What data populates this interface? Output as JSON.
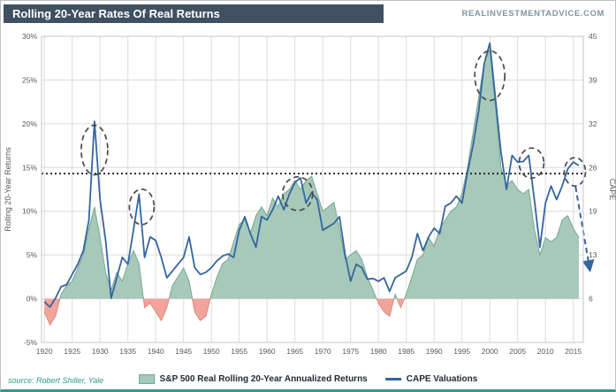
{
  "header": {
    "title": "Rolling 20-Year Rates Of Real Returns",
    "site": "REALINVESTMENTADVICE.COM"
  },
  "legend": {
    "area_label": "S&P 500 Real Rolling 20-Year Annualized Returns",
    "line_label": "CAPE Valuations"
  },
  "footer": {
    "source": "source:  Robert Shiller, Yale"
  },
  "chart_data": {
    "type": "area+line",
    "title": "Rolling 20-Year Rates Of Real Returns",
    "ylabel_left": "Rolling  20-Year Returns",
    "ylabel_right": "CAPE",
    "ylim_left": [
      -5,
      30
    ],
    "ylim_right": [
      0,
      45
    ],
    "x_range": [
      1919.5,
      2016.8
    ],
    "grid": true,
    "left_ticks": [
      "30%",
      "25%",
      "20%",
      "15%",
      "10%",
      "5%",
      "0%",
      "-5%"
    ],
    "right_ticks": [
      "45",
      "39",
      "32",
      "26",
      "19",
      "13",
      "6"
    ],
    "x_ticks": [
      "1920",
      "1925",
      "1930",
      "1935",
      "1940",
      "1945",
      "1950",
      "1955",
      "1960",
      "1965",
      "1970",
      "1975",
      "1980",
      "1985",
      "1990",
      "1995",
      "2000",
      "2005",
      "2010",
      "2015"
    ],
    "dotted_line_pct": 14.3,
    "x": [
      1920,
      1921,
      1922,
      1923,
      1924,
      1925,
      1926,
      1927,
      1928,
      1929,
      1930,
      1931,
      1932,
      1933,
      1934,
      1935,
      1936,
      1937,
      1938,
      1939,
      1940,
      1941,
      1942,
      1943,
      1944,
      1945,
      1946,
      1947,
      1948,
      1949,
      1950,
      1951,
      1952,
      1953,
      1954,
      1955,
      1956,
      1957,
      1958,
      1959,
      1960,
      1961,
      1962,
      1963,
      1964,
      1965,
      1966,
      1967,
      1968,
      1969,
      1970,
      1971,
      1972,
      1973,
      1974,
      1975,
      1976,
      1977,
      1978,
      1979,
      1980,
      1981,
      1982,
      1983,
      1984,
      1985,
      1986,
      1987,
      1988,
      1989,
      1990,
      1991,
      1992,
      1993,
      1994,
      1995,
      1996,
      1997,
      1998,
      1999,
      2000,
      2001,
      2002,
      2003,
      2004,
      2005,
      2006,
      2007,
      2008,
      2009,
      2010,
      2011,
      2012,
      2013,
      2014,
      2015,
      2016
    ],
    "series": [
      {
        "name": "S&P 500 Real Rolling 20-Year Annualized Returns",
        "axis": "left",
        "unit": "%",
        "values": [
          -1.5,
          -3,
          -2,
          0.5,
          1.5,
          2,
          3.5,
          5,
          8,
          10.5,
          7,
          3,
          1,
          3,
          2,
          4,
          5.5,
          4,
          -1,
          -0.5,
          -1.5,
          -2.5,
          -1,
          1.5,
          2.5,
          3.5,
          2,
          -1.5,
          -2.5,
          -2,
          0.5,
          2.5,
          4,
          4.5,
          6.5,
          8.5,
          9,
          7.5,
          9.5,
          10.5,
          9.5,
          11.5,
          10.5,
          12,
          12.5,
          13.5,
          12.5,
          13.5,
          14,
          12,
          10,
          10.5,
          11,
          8,
          4.5,
          5,
          5.5,
          4.5,
          2.5,
          1,
          -0.5,
          -1.5,
          -2,
          0.5,
          -1,
          0.5,
          2.5,
          4.5,
          5,
          7,
          6,
          8,
          9,
          10,
          10.5,
          12,
          15,
          19,
          23,
          27,
          28.5,
          22,
          15,
          13,
          13.5,
          12.5,
          12,
          12.5,
          8,
          5,
          7,
          6.5,
          7,
          9,
          9.5,
          8,
          7
        ]
      },
      {
        "name": "CAPE Valuations",
        "axis": "right",
        "values": [
          6,
          5.2,
          6.5,
          8.2,
          8.5,
          10,
          11.5,
          13.5,
          18,
          32.5,
          21,
          15,
          6.5,
          9.5,
          12.5,
          11.5,
          16.5,
          21.8,
          12.5,
          15.5,
          15,
          12.5,
          9.5,
          10.5,
          11.5,
          12.5,
          15.5,
          11,
          10,
          10.3,
          11,
          12,
          12.7,
          13,
          12.5,
          16.5,
          18.5,
          16,
          14,
          18.5,
          18,
          19.5,
          21.5,
          19.5,
          21.8,
          23.5,
          24.2,
          20.5,
          22,
          21,
          16.5,
          17,
          17.5,
          18.5,
          13,
          9,
          11.5,
          11,
          9.3,
          9.4,
          9,
          9.5,
          7.5,
          9.5,
          10,
          10.5,
          12.5,
          16,
          13.5,
          15.5,
          16.8,
          16,
          20,
          20.5,
          21.5,
          20.5,
          25,
          29,
          34,
          41,
          44,
          36,
          28,
          22.5,
          27.5,
          26.5,
          26.6,
          27.5,
          21,
          14,
          20.5,
          23,
          21,
          23,
          25.5,
          26.5,
          26
        ]
      }
    ],
    "annotations": {
      "circles": [
        {
          "year": 1929,
          "pct": 17,
          "rx": 15,
          "ry": 28
        },
        {
          "year": 1937.5,
          "pct": 10.5,
          "rx": 14,
          "ry": 20
        },
        {
          "year": 1965.5,
          "pct": 12,
          "rx": 17,
          "ry": 19
        },
        {
          "year": 2000,
          "pct": 25.5,
          "rx": 17,
          "ry": 28
        },
        {
          "year": 2007.5,
          "pct": 15.5,
          "rx": 14,
          "ry": 17
        },
        {
          "year": 2015.3,
          "pct": 14.5,
          "rx": 12,
          "ry": 16
        }
      ],
      "arrow": {
        "from": {
          "year": 2015.4,
          "pct": 12.8
        },
        "to": {
          "year": 2018,
          "pct": 3.2
        }
      }
    },
    "colors": {
      "area_pos": "#a7c9ba",
      "area_neg": "#f2a49c",
      "area_edge_pos": "#74a893",
      "area_edge_neg": "#d9897f",
      "line": "#34659f",
      "grid": "#dcdcdc",
      "dotted": "#1f1f1f",
      "circle": "#4a4a4a"
    },
    "legend_position": "bottom"
  }
}
